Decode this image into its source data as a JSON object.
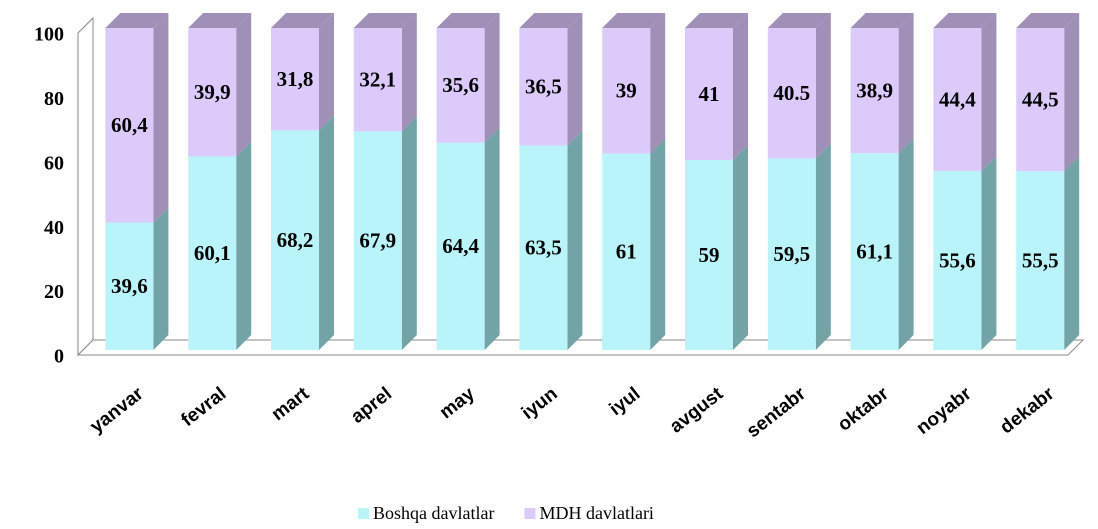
{
  "chart_data": {
    "type": "bar",
    "stacked": true,
    "categories": [
      "yanvar",
      "fevral",
      "mart",
      "aprel",
      "may",
      "iyun",
      "iyul",
      "avgust",
      "sentabr",
      "oktabr",
      "noyabr",
      "dekabr"
    ],
    "series": [
      {
        "name": "Boshqa davlatlar",
        "color": "#b9f4fb",
        "side_color": "#72a3a6",
        "values": [
          39.6,
          60.1,
          68.2,
          67.9,
          64.4,
          63.5,
          61,
          59,
          59.5,
          61.1,
          55.6,
          55.5
        ],
        "value_labels": [
          "39,6",
          "60,1",
          "68,2",
          "67,9",
          "64,4",
          "63,5",
          "61",
          "59",
          "59,5",
          "61,1",
          "55,6",
          "55,5"
        ]
      },
      {
        "name": "MDH davlatlari",
        "color": "#dccbfa",
        "side_color": "#a08fb6",
        "values": [
          60.4,
          39.9,
          31.8,
          32.1,
          35.6,
          36.5,
          39,
          41,
          40.5,
          38.9,
          44.4,
          44.5
        ],
        "value_labels": [
          "60,4",
          "39,9",
          "31,8",
          "32,1",
          "35,6",
          "36,5",
          "39",
          "41",
          "40.5",
          "38,9",
          "44,4",
          "44,5"
        ]
      }
    ],
    "ylim": [
      0,
      100
    ],
    "yticks": [
      0,
      20,
      40,
      60,
      80,
      100
    ],
    "grid": false,
    "legend": "bottom"
  }
}
